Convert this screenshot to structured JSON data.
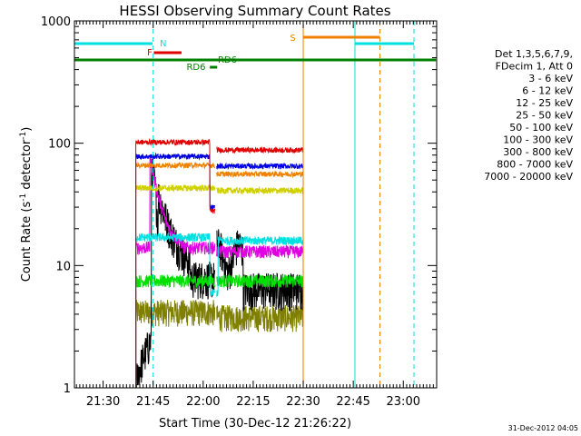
{
  "chart_data": {
    "type": "line",
    "title": "HESSI Observing Summary Count Rates",
    "xlabel": "Start Time (30-Dec-12 21:26:22)",
    "ylabel_main": "Count Rate (s",
    "ylabel_sup1": "-1",
    "ylabel_mid": " detector",
    "ylabel_sup2": "-1",
    "ylabel_end": ")",
    "y_scale": "log",
    "ylim": [
      1,
      1000
    ],
    "xlim_minutes": [
      21.4,
      30.0
    ],
    "x_ticks": [
      {
        "label": "21:30",
        "m": 30
      },
      {
        "label": "21:45",
        "m": 45
      },
      {
        "label": "22:00",
        "m": 60
      },
      {
        "label": "22:15",
        "m": 75
      },
      {
        "label": "22:30",
        "m": 90
      },
      {
        "label": "22:45",
        "m": 105
      },
      {
        "label": "23:00",
        "m": 120
      }
    ],
    "y_ticks": [
      {
        "label": "1",
        "v": 1
      },
      {
        "label": "10",
        "v": 10
      },
      {
        "label": "100",
        "v": 100
      },
      {
        "label": "1000",
        "v": 1000
      }
    ],
    "legend_header": [
      "Det 1,3,5,6,7,9,",
      "FDecim 1, Att 0"
    ],
    "series": [
      {
        "name": "3 - 6 keV",
        "color": "#000000"
      },
      {
        "name": "6 - 12 keV",
        "color": "#e000e0"
      },
      {
        "name": "12 - 25 keV",
        "color": "#00e000"
      },
      {
        "name": "25 - 50 keV",
        "color": "#00e0e0"
      },
      {
        "name": "50 - 100 keV",
        "color": "#d0d000"
      },
      {
        "name": "100 - 300 keV",
        "color": "#e00000"
      },
      {
        "name": "300 - 800 keV",
        "color": "#0000e0"
      },
      {
        "name": "800 - 7000 keV",
        "color": "#f08000"
      },
      {
        "name": "7000 - 20000 keV",
        "color": "#808000"
      }
    ],
    "flags": [
      {
        "label": "N",
        "color": "#00e0e0"
      },
      {
        "label": "F",
        "color": "#e00000"
      },
      {
        "label": "RD6",
        "color": "#008000"
      },
      {
        "label": "RD6",
        "color": "#008000"
      },
      {
        "label": "S",
        "color": "#f08000"
      }
    ],
    "timestamp": "31-Dec-2012 04:05"
  }
}
